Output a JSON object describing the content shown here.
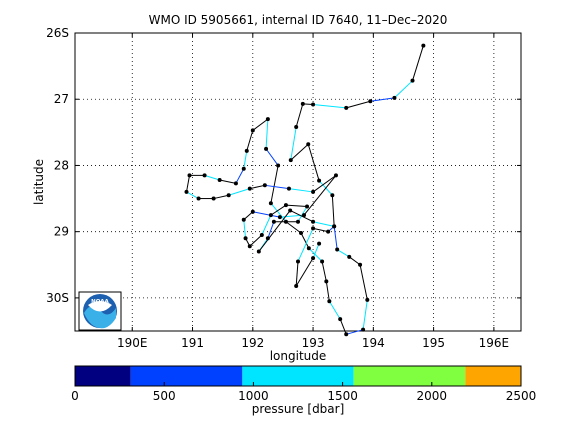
{
  "chart_data": {
    "type": "scatter",
    "title": "WMO ID 5905661, internal ID 7640, 11–Dec–2020",
    "xlabel": "longitude",
    "ylabel": "latitude",
    "xlim": [
      189.05,
      196.45
    ],
    "ylim": [
      30.5,
      26.0
    ],
    "x_ticks": [
      {
        "value": 190,
        "label": "190E"
      },
      {
        "value": 191,
        "label": "191"
      },
      {
        "value": 192,
        "label": "192"
      },
      {
        "value": 193,
        "label": "193"
      },
      {
        "value": 194,
        "label": "194"
      },
      {
        "value": 195,
        "label": "195"
      },
      {
        "value": 196,
        "label": "196E"
      }
    ],
    "y_ticks": [
      {
        "value": 26,
        "label": "26S"
      },
      {
        "value": 27,
        "label": "27"
      },
      {
        "value": 28,
        "label": "28"
      },
      {
        "value": 29,
        "label": "29"
      },
      {
        "value": 30,
        "label": "30S"
      }
    ],
    "grid": true,
    "logo": "NOAA",
    "colorbar": {
      "label": "pressure [dbar]",
      "range": [
        0,
        2500
      ],
      "ticks": [
        {
          "value": 0,
          "label": "0"
        },
        {
          "value": 500,
          "label": "500"
        },
        {
          "value": 1000,
          "label": "1000"
        },
        {
          "value": 1500,
          "label": "1500"
        },
        {
          "value": 2000,
          "label": "2000"
        },
        {
          "value": 2500,
          "label": "2500"
        }
      ],
      "bins": [
        {
          "from": 0,
          "to": 312,
          "color": "#000080"
        },
        {
          "from": 312,
          "to": 938,
          "color": "#0040ff"
        },
        {
          "from": 938,
          "to": 1562,
          "color": "#00e5ff"
        },
        {
          "from": 1562,
          "to": 2188,
          "color": "#80ff40"
        },
        {
          "from": 2188,
          "to": 2500,
          "color": "#ffa500"
        }
      ]
    },
    "series": [
      {
        "marker_color": "#000000",
        "points": [
          {
            "lon": 194.83,
            "lat": 26.19
          },
          {
            "lon": 194.65,
            "lat": 26.72
          },
          {
            "lon": 194.35,
            "lat": 26.98
          },
          {
            "lon": 193.95,
            "lat": 27.03
          },
          {
            "lon": 193.55,
            "lat": 27.13
          },
          {
            "lon": 193.0,
            "lat": 27.08
          },
          {
            "lon": 192.83,
            "lat": 27.07
          },
          {
            "lon": 192.72,
            "lat": 27.42
          },
          {
            "lon": 192.63,
            "lat": 27.92
          },
          {
            "lon": 192.92,
            "lat": 27.68
          },
          {
            "lon": 193.1,
            "lat": 28.23
          },
          {
            "lon": 193.32,
            "lat": 28.45
          },
          {
            "lon": 193.35,
            "lat": 28.92
          },
          {
            "lon": 193.4,
            "lat": 29.27
          },
          {
            "lon": 193.6,
            "lat": 29.38
          },
          {
            "lon": 193.78,
            "lat": 29.5
          },
          {
            "lon": 193.9,
            "lat": 30.03
          },
          {
            "lon": 193.83,
            "lat": 30.48
          },
          {
            "lon": 193.55,
            "lat": 30.55
          },
          {
            "lon": 193.45,
            "lat": 30.32
          },
          {
            "lon": 193.27,
            "lat": 30.05
          },
          {
            "lon": 193.22,
            "lat": 29.75
          },
          {
            "lon": 193.15,
            "lat": 29.45
          },
          {
            "lon": 192.93,
            "lat": 29.25
          },
          {
            "lon": 192.8,
            "lat": 29.02
          },
          {
            "lon": 192.55,
            "lat": 28.85
          },
          {
            "lon": 192.3,
            "lat": 28.57
          },
          {
            "lon": 192.42,
            "lat": 28.0
          },
          {
            "lon": 192.22,
            "lat": 27.75
          },
          {
            "lon": 192.25,
            "lat": 27.3
          },
          {
            "lon": 192.0,
            "lat": 27.47
          },
          {
            "lon": 191.9,
            "lat": 27.78
          },
          {
            "lon": 191.85,
            "lat": 28.05
          },
          {
            "lon": 191.72,
            "lat": 28.27
          },
          {
            "lon": 191.45,
            "lat": 28.22
          },
          {
            "lon": 191.2,
            "lat": 28.15
          },
          {
            "lon": 190.95,
            "lat": 28.15
          },
          {
            "lon": 190.9,
            "lat": 28.4
          },
          {
            "lon": 191.1,
            "lat": 28.5
          },
          {
            "lon": 191.35,
            "lat": 28.5
          },
          {
            "lon": 191.6,
            "lat": 28.45
          },
          {
            "lon": 191.95,
            "lat": 28.35
          },
          {
            "lon": 192.2,
            "lat": 28.3
          },
          {
            "lon": 192.6,
            "lat": 28.35
          },
          {
            "lon": 193.0,
            "lat": 28.4
          },
          {
            "lon": 193.38,
            "lat": 28.15
          },
          {
            "lon": 192.85,
            "lat": 28.75
          },
          {
            "lon": 192.45,
            "lat": 28.78
          },
          {
            "lon": 192.0,
            "lat": 28.7
          },
          {
            "lon": 191.85,
            "lat": 28.82
          },
          {
            "lon": 191.88,
            "lat": 29.1
          },
          {
            "lon": 191.95,
            "lat": 29.22
          },
          {
            "lon": 192.15,
            "lat": 29.05
          },
          {
            "lon": 192.3,
            "lat": 28.75
          },
          {
            "lon": 192.55,
            "lat": 28.6
          },
          {
            "lon": 192.9,
            "lat": 28.62
          },
          {
            "lon": 192.75,
            "lat": 28.85
          },
          {
            "lon": 192.35,
            "lat": 28.85
          },
          {
            "lon": 192.25,
            "lat": 29.1
          },
          {
            "lon": 192.1,
            "lat": 29.3
          },
          {
            "lon": 192.62,
            "lat": 28.68
          },
          {
            "lon": 193.0,
            "lat": 28.85
          },
          {
            "lon": 193.35,
            "lat": 28.92
          },
          {
            "lon": 193.25,
            "lat": 29.0
          },
          {
            "lon": 193.0,
            "lat": 28.95
          },
          {
            "lon": 192.75,
            "lat": 29.45
          },
          {
            "lon": 192.72,
            "lat": 29.82
          },
          {
            "lon": 193.0,
            "lat": 29.4
          },
          {
            "lon": 193.1,
            "lat": 29.18
          }
        ]
      }
    ]
  }
}
